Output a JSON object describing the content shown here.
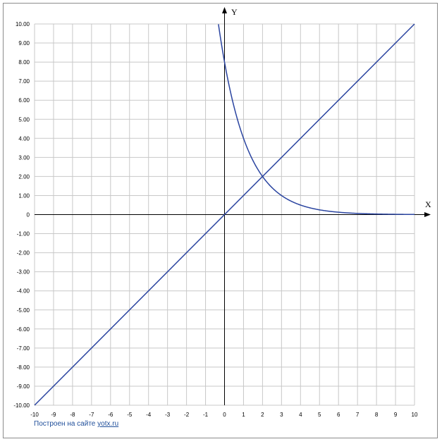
{
  "chart_data": {
    "type": "line",
    "xlabel": "X",
    "ylabel": "Y",
    "xlim": [
      -10,
      10
    ],
    "ylim": [
      -10,
      10
    ],
    "grid": true,
    "x_ticks": [
      "-10",
      "-9",
      "-8",
      "-7",
      "-6",
      "-5",
      "-4",
      "-3",
      "-2",
      "-1",
      "0",
      "1",
      "2",
      "3",
      "4",
      "5",
      "6",
      "7",
      "8",
      "9",
      "10"
    ],
    "y_ticks": [
      "10.00",
      "9.00",
      "8.00",
      "7.00",
      "6.00",
      "5.00",
      "4.00",
      "3.00",
      "2.00",
      "1.00",
      "0",
      "-1.00",
      "-2.00",
      "-3.00",
      "-4.00",
      "-5.00",
      "-6.00",
      "-7.00",
      "-8.00",
      "-9.00",
      "-10.00"
    ],
    "series": [
      {
        "color": "#2a44a0",
        "x": [
          -10,
          10
        ],
        "y": [
          -10,
          10
        ]
      },
      {
        "color": "#2a44a0",
        "x": [
          -0.32,
          -0.25,
          -0.1,
          0,
          0.25,
          0.5,
          0.75,
          1,
          1.25,
          1.5,
          1.75,
          2,
          2.5,
          3,
          3.5,
          4,
          4.5,
          5,
          6,
          7,
          8,
          9,
          10
        ],
        "y": [
          10.0,
          9.51,
          8.57,
          8.0,
          6.73,
          5.66,
          4.76,
          4.0,
          3.36,
          2.83,
          2.38,
          2.0,
          1.41,
          1.0,
          0.71,
          0.5,
          0.35,
          0.25,
          0.125,
          0.0625,
          0.031,
          0.016,
          0.0078
        ]
      }
    ]
  },
  "credit": {
    "text": "Построен на сайте",
    "link": "yotx.ru"
  }
}
